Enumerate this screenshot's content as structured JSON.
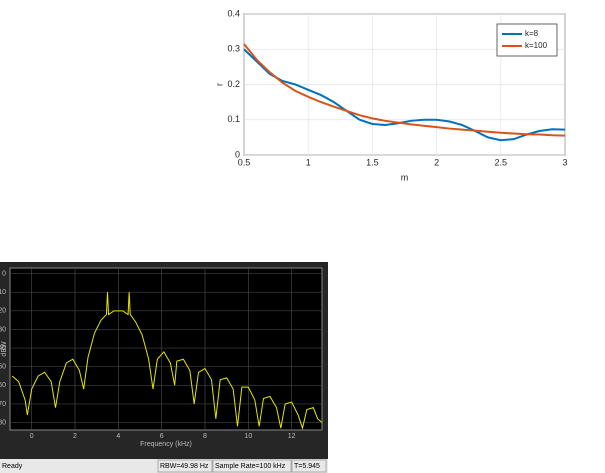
{
  "chart_data": [
    {
      "type": "line",
      "xlabel": "m",
      "ylabel": "r",
      "x": [
        0.5,
        0.6,
        0.7,
        0.8,
        0.9,
        1.0,
        1.1,
        1.2,
        1.3,
        1.4,
        1.5,
        1.6,
        1.7,
        1.8,
        1.9,
        2.0,
        2.1,
        2.2,
        2.3,
        2.4,
        2.5,
        2.6,
        2.7,
        2.8,
        2.9,
        3.0
      ],
      "series": [
        {
          "name": "k=8",
          "color": "#0072bd",
          "values": [
            0.3,
            0.265,
            0.23,
            0.21,
            0.2,
            0.185,
            0.17,
            0.15,
            0.125,
            0.1,
            0.088,
            0.085,
            0.09,
            0.097,
            0.1,
            0.1,
            0.095,
            0.085,
            0.068,
            0.05,
            0.042,
            0.045,
            0.058,
            0.068,
            0.073,
            0.072
          ]
        },
        {
          "name": "k=100",
          "color": "#d95319",
          "values": [
            0.315,
            0.27,
            0.235,
            0.205,
            0.182,
            0.165,
            0.15,
            0.137,
            0.125,
            0.113,
            0.104,
            0.097,
            0.092,
            0.087,
            0.083,
            0.079,
            0.075,
            0.072,
            0.069,
            0.066,
            0.063,
            0.061,
            0.059,
            0.058,
            0.056,
            0.055
          ]
        }
      ],
      "xlim": [
        0.5,
        3
      ],
      "ylim": [
        0,
        0.4
      ],
      "xticks": [
        0.5,
        1,
        1.5,
        2,
        2.5,
        3
      ],
      "yticks": [
        0,
        0.1,
        0.2,
        0.3,
        0.4
      ],
      "grid": true,
      "legend": "top-right"
    },
    {
      "type": "line",
      "xlabel": "Frequency (kHz)",
      "ylabel": "dBW",
      "x": [
        -0.9,
        -0.6,
        -0.3,
        -0.2,
        0.0,
        0.3,
        0.6,
        0.9,
        1.1,
        1.3,
        1.6,
        1.9,
        2.2,
        2.4,
        2.6,
        2.9,
        3.2,
        3.45,
        3.5,
        3.55,
        3.8,
        4.0,
        4.2,
        4.45,
        4.5,
        4.55,
        4.8,
        5.1,
        5.4,
        5.6,
        5.8,
        6.1,
        6.4,
        6.6,
        6.7,
        7.0,
        7.3,
        7.5,
        7.7,
        8.0,
        8.3,
        8.5,
        8.7,
        9.0,
        9.3,
        9.5,
        9.7,
        10.0,
        10.3,
        10.5,
        10.7,
        11.0,
        11.3,
        11.5,
        11.7,
        12.0,
        12.3,
        12.5,
        12.7,
        13.0,
        13.2,
        13.4
      ],
      "series": [
        {
          "name": "spectrum",
          "color": "#e6e600",
          "values": [
            -55,
            -58,
            -68,
            -76,
            -62,
            -55,
            -53,
            -58,
            -72,
            -58,
            -48,
            -46,
            -52,
            -62,
            -45,
            -32,
            -25,
            -22,
            -10,
            -22,
            -20,
            -20,
            -20,
            -22,
            -10,
            -22,
            -26,
            -33,
            -46,
            -62,
            -46,
            -42,
            -48,
            -60,
            -47,
            -46,
            -52,
            -70,
            -53,
            -51,
            -57,
            -78,
            -57,
            -56,
            -62,
            -82,
            -61,
            -61,
            -68,
            -82,
            -67,
            -66,
            -72,
            -83,
            -70,
            -69,
            -76,
            -83,
            -73,
            -72,
            -78,
            -80
          ]
        }
      ],
      "xlim": [
        -1,
        13.4
      ],
      "ylim": [
        -84,
        3
      ],
      "xticks": [
        0,
        2,
        4,
        6,
        8,
        10,
        12
      ],
      "yticks": [
        0,
        -10,
        -20,
        -30,
        -40,
        -50,
        -60,
        -70,
        -80
      ],
      "grid": true,
      "status_bar": {
        "state": "Ready",
        "rbw": "RBW=49.98 Hz",
        "sample_rate": "Sample Rate=100 kHz",
        "time": "T=5.945"
      }
    }
  ]
}
